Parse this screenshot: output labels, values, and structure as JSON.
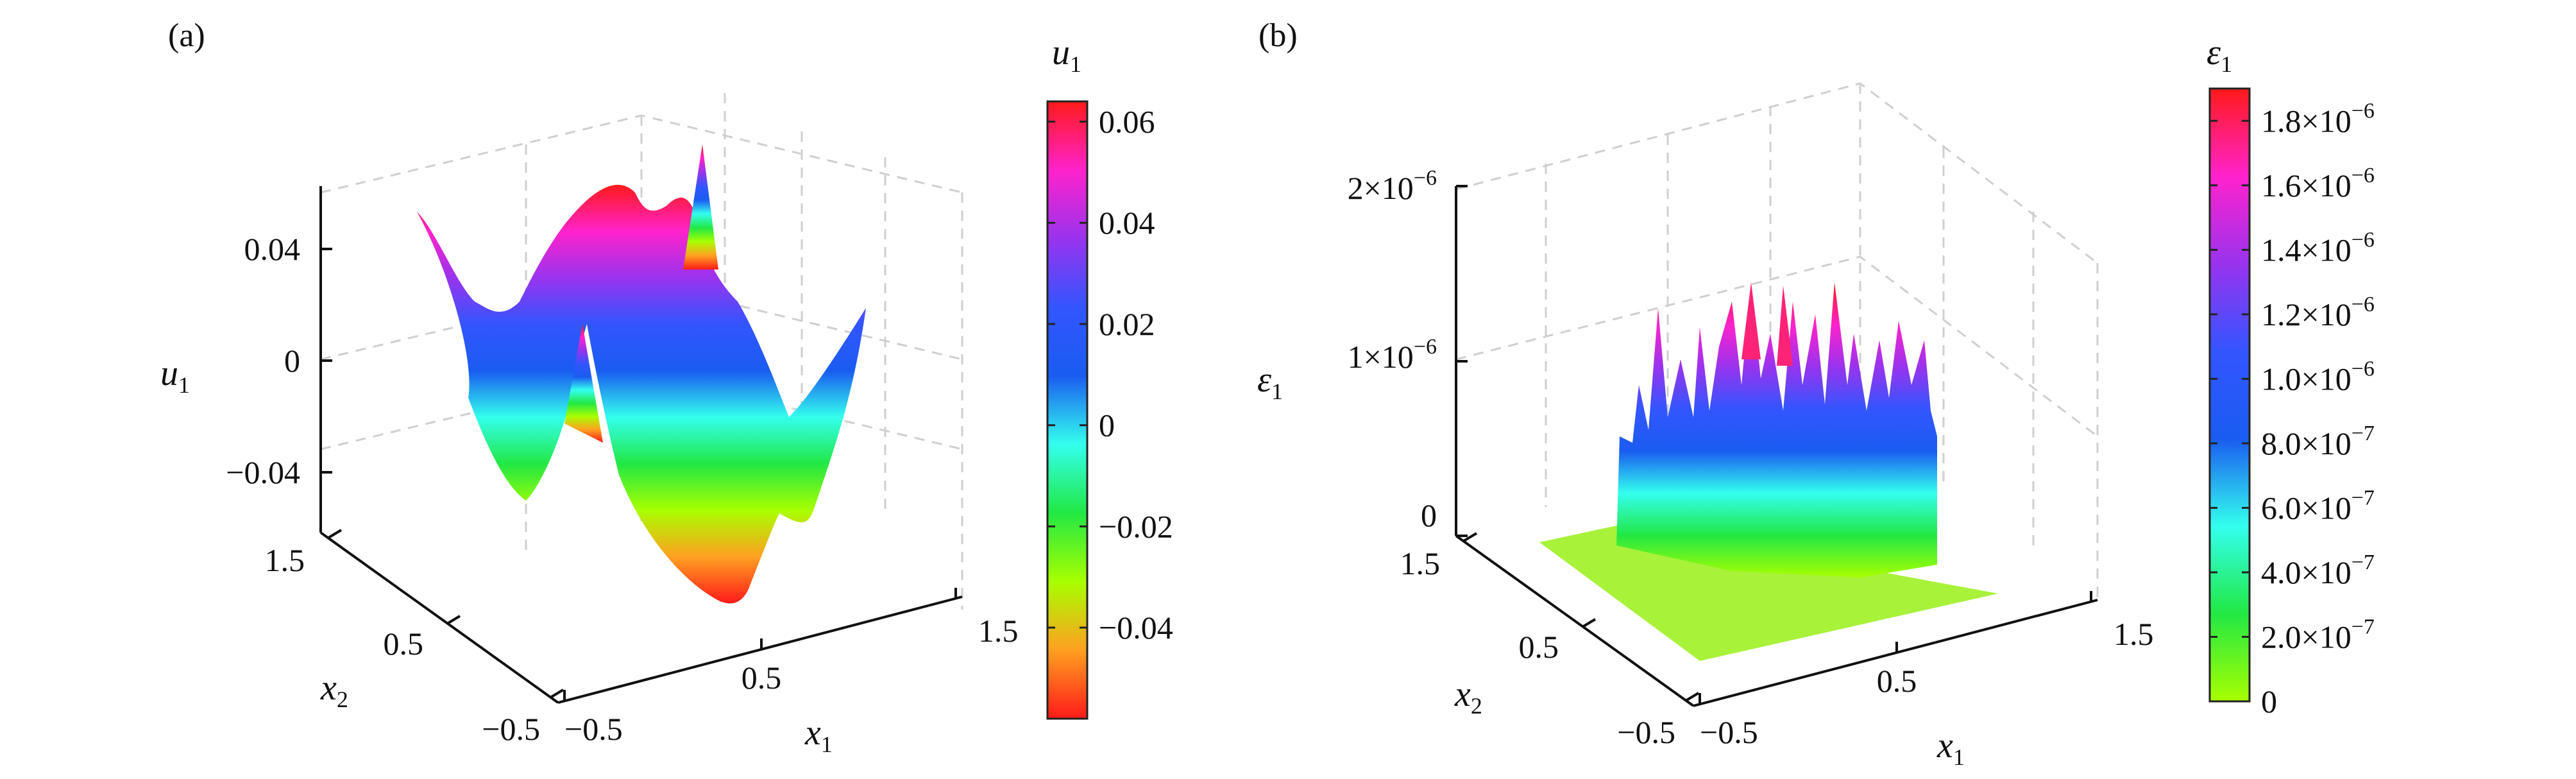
{
  "chart_data": [
    {
      "type": "surface",
      "panel_label": "(a)",
      "title": "",
      "zlabel": "u",
      "zlabel_sub": "1",
      "xlabel": "x",
      "xlabel_sub": "1",
      "ylabel": "x",
      "ylabel_sub": "2",
      "z_ticks": [
        "0.04",
        "0",
        "−0.04"
      ],
      "x_ticks": [
        "−0.5",
        "0.5",
        "1.5"
      ],
      "y_ticks": [
        "1.5",
        "0.5",
        "−0.5"
      ],
      "xlim": [
        -0.5,
        1.5
      ],
      "ylim": [
        -0.5,
        1.5
      ],
      "zlim": [
        -0.06,
        0.06
      ],
      "grid": true,
      "colorbar": {
        "title": "u",
        "title_sub": "1",
        "range": [
          -0.058,
          0.064
        ],
        "tick_labels": [
          "0.06",
          "0.04",
          "0.02",
          "0",
          "−0.02",
          "−0.04"
        ],
        "tick_values": [
          0.06,
          0.04,
          0.02,
          0,
          -0.02,
          -0.04
        ],
        "colors": [
          "#ff1a1a",
          "#ffa020",
          "#a8ff00",
          "#22e844",
          "#33ffee",
          "#1a5cf0",
          "#3355ff",
          "#9933ee",
          "#ff22cc",
          "#ff1a1a"
        ]
      }
    },
    {
      "type": "surface",
      "panel_label": "(b)",
      "title": "",
      "zlabel": "ε",
      "zlabel_sub": "1",
      "xlabel": "x",
      "xlabel_sub": "1",
      "ylabel": "x",
      "ylabel_sub": "2",
      "z_ticks": [
        {
          "mant": "2×10",
          "exp": "−6"
        },
        {
          "mant": "1×10",
          "exp": "−6"
        },
        {
          "mant": "0",
          "exp": ""
        }
      ],
      "x_ticks": [
        "−0.5",
        "0.5",
        "1.5"
      ],
      "y_ticks": [
        "1.5",
        "0.5",
        "−0.5"
      ],
      "xlim": [
        -0.5,
        1.5
      ],
      "ylim": [
        -0.5,
        1.5
      ],
      "zlim": [
        0,
        2e-06
      ],
      "grid": true,
      "colorbar": {
        "title": "ε",
        "title_sub": "1",
        "range": [
          0,
          1.9e-06
        ],
        "tick_labels": [
          {
            "mant": "1.8×10",
            "exp": "−6"
          },
          {
            "mant": "1.6×10",
            "exp": "−6"
          },
          {
            "mant": "1.4×10",
            "exp": "−6"
          },
          {
            "mant": "1.2×10",
            "exp": "−6"
          },
          {
            "mant": "1.0×10",
            "exp": "−6"
          },
          {
            "mant": "8.0×10",
            "exp": "−7"
          },
          {
            "mant": "6.0×10",
            "exp": "−7"
          },
          {
            "mant": "4.0×10",
            "exp": "−7"
          },
          {
            "mant": "2.0×10",
            "exp": "−7"
          },
          {
            "mant": "0",
            "exp": ""
          }
        ],
        "tick_values": [
          1.8e-06,
          1.6e-06,
          1.4e-06,
          1.2e-06,
          1e-06,
          8e-07,
          6e-07,
          4e-07,
          2e-07,
          0
        ],
        "colors": [
          "#a8ff00",
          "#22e844",
          "#33ffee",
          "#1a5cf0",
          "#3355ff",
          "#9933ee",
          "#ff22cc",
          "#ff1a1a"
        ]
      }
    }
  ]
}
